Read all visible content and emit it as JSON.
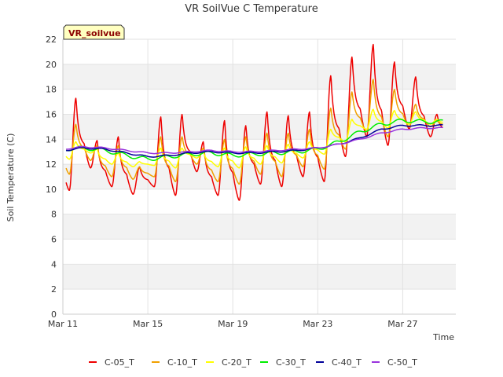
{
  "chart_data": {
    "type": "line",
    "title": "VR SoilVue C Temperature",
    "xlabel": "Time",
    "ylabel": "Soil Temperature (C)",
    "site_label": "VR_soilvue",
    "x_unit": "days since Mar 11",
    "xlim": [
      0,
      18.5
    ],
    "ylim": [
      0,
      22
    ],
    "yticks": [
      0,
      2,
      4,
      6,
      8,
      10,
      12,
      14,
      16,
      18,
      20,
      22
    ],
    "xticks": [
      {
        "value": 0,
        "label": "Mar 11"
      },
      {
        "value": 4,
        "label": "Mar 15"
      },
      {
        "value": 8,
        "label": "Mar 19"
      },
      {
        "value": 12,
        "label": "Mar 23"
      },
      {
        "value": 16,
        "label": "Mar 27"
      }
    ],
    "grid": true,
    "legend_position": "bottom",
    "days": [
      11,
      12,
      13,
      14,
      15,
      16,
      17,
      18,
      19,
      20,
      21,
      22,
      23,
      24,
      25,
      26,
      27,
      28
    ],
    "series": [
      {
        "name": "C-05_T",
        "color": "#ee0000",
        "maxs": [
          17.3,
          13.9,
          14.2,
          11.8,
          15.8,
          16.0,
          13.8,
          15.5,
          15.1,
          16.2,
          15.9,
          16.2,
          19.1,
          20.6,
          21.6,
          20.2,
          19.0,
          16.0
        ],
        "mins": [
          9.9,
          11.7,
          10.2,
          9.6,
          10.2,
          9.5,
          11.4,
          9.5,
          9.1,
          10.4,
          10.2,
          11.0,
          10.6,
          12.6,
          14.2,
          13.5,
          14.8,
          14.2
        ],
        "start": 11.6,
        "end": 14.2
      },
      {
        "name": "C-10_T",
        "color": "#f0a000",
        "maxs": [
          15.2,
          13.5,
          13.5,
          11.8,
          14.2,
          14.2,
          13.3,
          14.0,
          14.2,
          14.5,
          14.5,
          14.8,
          16.5,
          17.8,
          18.8,
          18.0,
          16.8,
          15.5
        ],
        "mins": [
          11.2,
          12.3,
          11.0,
          10.8,
          11.0,
          10.6,
          12.0,
          10.6,
          10.4,
          11.2,
          11.0,
          11.8,
          11.6,
          13.2,
          14.6,
          14.2,
          15.0,
          15.0
        ],
        "start": 12.5,
        "end": 15.2
      },
      {
        "name": "C-20_T",
        "color": "#ffff00",
        "maxs": [
          13.8,
          13.2,
          12.9,
          12.2,
          13.3,
          13.3,
          13.0,
          13.3,
          13.4,
          13.5,
          13.6,
          13.8,
          14.8,
          15.6,
          16.4,
          16.3,
          16.2,
          15.6
        ],
        "mins": [
          12.4,
          12.9,
          12.0,
          11.8,
          11.9,
          11.7,
          12.5,
          11.8,
          11.7,
          12.0,
          12.1,
          12.5,
          12.8,
          13.8,
          14.8,
          14.9,
          15.2,
          15.2
        ],
        "start": 13.0,
        "end": 15.6
      },
      {
        "name": "C-30_T",
        "color": "#00ee00",
        "base": [
          13.2,
          13.3,
          13.1,
          12.7,
          12.4,
          12.6,
          12.8,
          12.9,
          12.7,
          12.8,
          12.9,
          13.0,
          13.2,
          13.8,
          14.6,
          15.2,
          15.5,
          15.4
        ],
        "amp": 0.15
      },
      {
        "name": "C-40_T",
        "color": "#000099",
        "base": [
          13.1,
          13.3,
          13.2,
          12.9,
          12.6,
          12.7,
          12.9,
          13.0,
          12.9,
          12.9,
          13.0,
          13.1,
          13.3,
          13.6,
          14.1,
          14.8,
          15.1,
          15.1
        ],
        "amp": 0.06
      },
      {
        "name": "C-50_T",
        "color": "#9933dd",
        "base": [
          13.2,
          13.4,
          13.3,
          13.1,
          12.9,
          12.9,
          13.0,
          13.1,
          13.0,
          13.0,
          13.1,
          13.2,
          13.3,
          13.6,
          14.0,
          14.5,
          14.8,
          14.9
        ],
        "amp": 0.05
      }
    ]
  }
}
